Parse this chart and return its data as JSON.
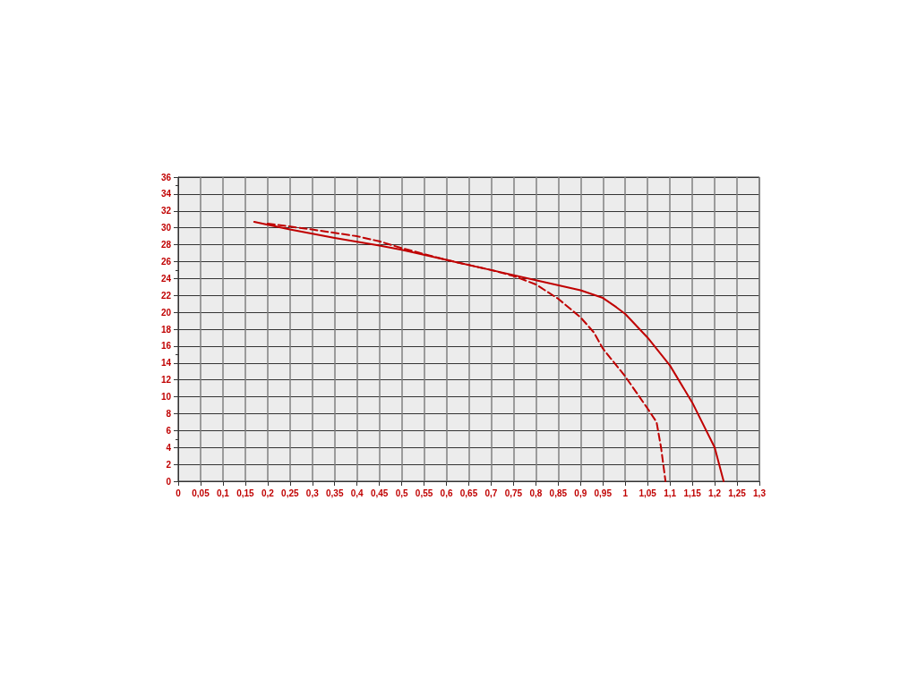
{
  "chart_data": {
    "type": "line",
    "xlim": [
      0,
      1.3
    ],
    "ylim": [
      0,
      36
    ],
    "xticks": [
      0,
      {
        "value": 0.05,
        "label": "0,05"
      },
      {
        "value": 0.1,
        "label": "0,1"
      },
      {
        "value": 0.15,
        "label": "0,15"
      },
      {
        "value": 0.2,
        "label": "0,2"
      },
      {
        "value": 0.25,
        "label": "0,25"
      },
      {
        "value": 0.3,
        "label": "0,3"
      },
      {
        "value": 0.35,
        "label": "0,35"
      },
      {
        "value": 0.4,
        "label": "0,4"
      },
      {
        "value": 0.45,
        "label": "0,45"
      },
      {
        "value": 0.5,
        "label": "0,5"
      },
      {
        "value": 0.55,
        "label": "0,55"
      },
      {
        "value": 0.6,
        "label": "0,6"
      },
      {
        "value": 0.65,
        "label": "0,65"
      },
      {
        "value": 0.7,
        "label": "0,7"
      },
      {
        "value": 0.75,
        "label": "0,75"
      },
      {
        "value": 0.8,
        "label": "0,8"
      },
      {
        "value": 0.85,
        "label": "0,85"
      },
      {
        "value": 0.9,
        "label": "0,9"
      },
      {
        "value": 0.95,
        "label": "0,95"
      },
      1,
      {
        "value": 1.05,
        "label": "1,05"
      },
      {
        "value": 1.1,
        "label": "1,1"
      },
      {
        "value": 1.15,
        "label": "1,15"
      },
      {
        "value": 1.2,
        "label": "1,2"
      },
      {
        "value": 1.25,
        "label": "1,25"
      },
      {
        "value": 1.3,
        "label": "1,3"
      }
    ],
    "yticks": [
      0,
      2,
      4,
      6,
      8,
      10,
      12,
      14,
      16,
      18,
      20,
      22,
      24,
      26,
      28,
      30,
      32,
      34,
      36
    ],
    "grid": true,
    "marker": "none",
    "series": [
      {
        "color": "#c00000",
        "line_style": "dashed",
        "x": [
          0.2,
          0.3,
          0.4,
          0.45,
          0.5,
          0.6,
          0.7,
          0.75,
          0.8,
          0.85,
          0.9,
          0.93,
          0.95,
          1.0,
          1.05,
          1.07,
          1.08,
          1.09
        ],
        "values": [
          30.5,
          29.8,
          29.0,
          28.4,
          27.6,
          26.2,
          25.0,
          24.3,
          23.3,
          21.6,
          19.4,
          17.6,
          15.7,
          12.4,
          8.6,
          7.0,
          4.0,
          0
        ]
      },
      {
        "color": "#c00000",
        "line_style": "solid",
        "x": [
          0.17,
          0.25,
          0.35,
          0.45,
          0.5,
          0.6,
          0.7,
          0.8,
          0.9,
          0.95,
          0.98,
          1.0,
          1.05,
          1.1,
          1.15,
          1.2,
          1.22
        ],
        "values": [
          30.7,
          29.8,
          28.8,
          27.9,
          27.4,
          26.2,
          25.0,
          23.8,
          22.6,
          21.7,
          20.6,
          19.8,
          17.0,
          13.7,
          9.3,
          4.0,
          0
        ]
      }
    ]
  }
}
